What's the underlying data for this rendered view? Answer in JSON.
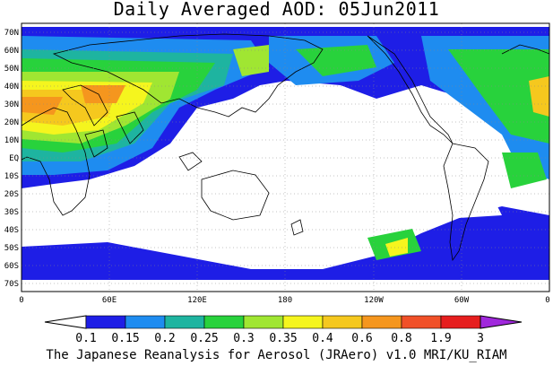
{
  "title": "Daily Averaged AOD: 05Jun2011",
  "footer": "The Japanese Reanalysis for Aerosol (JRAero) v1.0 MRI/KU_RIAM",
  "map": {
    "lon_ticks": [
      "0",
      "60E",
      "120E",
      "180",
      "120W",
      "60W",
      "0"
    ],
    "lat_ticks": [
      "70N",
      "60N",
      "50N",
      "40N",
      "30N",
      "20N",
      "10N",
      "EQ",
      "10S",
      "20S",
      "30S",
      "40S",
      "50S",
      "60S",
      "70S"
    ],
    "lat_range": [
      -75,
      75
    ],
    "lon_range": [
      0,
      360
    ]
  },
  "colorbar": {
    "levels": [
      "0.1",
      "0.15",
      "0.2",
      "0.25",
      "0.3",
      "0.35",
      "0.4",
      "0.6",
      "0.8",
      "1.9",
      "3"
    ],
    "colors": [
      "#ffffff",
      "#1e1ee6",
      "#1e8cf0",
      "#1eb4a0",
      "#28d23c",
      "#a0e632",
      "#f5f51e",
      "#f5c81e",
      "#f5961e",
      "#f05028",
      "#e61e1e",
      "#a028dc"
    ]
  }
}
